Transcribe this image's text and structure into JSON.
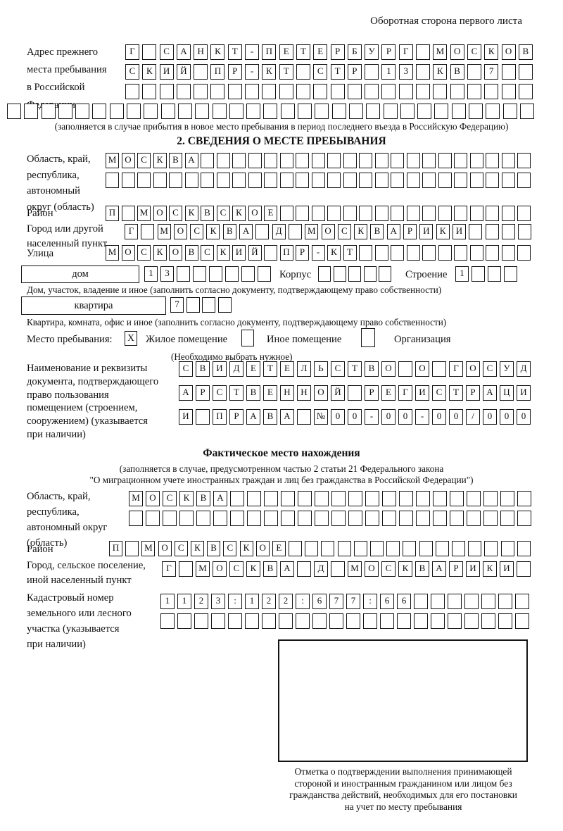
{
  "header_note": "Оборотная сторона первого листа",
  "section1": {
    "label_lines": [
      "Адрес прежнего",
      "места пребывания",
      "в Российской",
      "Федерации"
    ],
    "rows": [
      {
        "len": 24,
        "text": "Г САНКТ-ПЕТЕРБУРГ МОСКОВ"
      },
      {
        "len": 24,
        "text": "СКИЙ ПР-КТ СТР 13 КВ 7"
      },
      {
        "len": 24,
        "text": ""
      },
      {
        "len": 31,
        "text": ""
      }
    ],
    "caption": "(заполняется в случае прибытия в новое место пребывания в период последнего въезда в Российскую Федерацию)"
  },
  "section2": {
    "title": "2. СВЕДЕНИЯ О МЕСТЕ ПРЕБЫВАНИЯ",
    "region": {
      "label_lines": [
        "Область, край,",
        "республика,",
        "автономный",
        "округ (область)"
      ],
      "row1": {
        "len": 27,
        "text": "МОСКВА"
      },
      "row2": {
        "len": 27,
        "text": ""
      }
    },
    "district": {
      "label": "Район",
      "row": {
        "len": 27,
        "text": "П МОСКВСКОЕ"
      }
    },
    "city": {
      "label_lines": [
        "Город или другой",
        "населенный пункт"
      ],
      "row": {
        "len": 25,
        "text": "Г МОСКВА Д МОСКВАРИКИ"
      }
    },
    "street": {
      "label": "Улица",
      "row": {
        "len": 27,
        "text": "МОСКОВСКИЙ ПР-КТ"
      }
    },
    "house": {
      "box_label": "дом",
      "cells1": {
        "len": 8,
        "text": "13"
      },
      "korpus_label": "Корпус",
      "cells2": {
        "len": 5,
        "text": ""
      },
      "stroenie_label": "Строение",
      "cells3": {
        "len": 4,
        "text": "1"
      },
      "caption": "Дом, участок, владение и иное (заполнить согласно документу, подтверждающему право собственности)"
    },
    "apartment": {
      "box_label": "квартира",
      "cells": {
        "len": 4,
        "text": "7"
      },
      "caption": "Квартира, комната, офис и иное (заполнить согласно документу, подтверждающему право собственности)"
    },
    "stay_type": {
      "label": "Место пребывания:",
      "options": [
        {
          "label": "Жилое помещение",
          "mark": "X"
        },
        {
          "label": "Иное помещение",
          "mark": ""
        },
        {
          "label": "Организация",
          "mark": ""
        }
      ],
      "note": "(Необходимо выбрать нужное)"
    },
    "doc": {
      "label_lines": [
        "Наименование и реквизиты",
        "документа, подтверждающего",
        "право пользования",
        "помещением (строением,",
        "сооружением) (указывается",
        "при наличии)"
      ],
      "rows": [
        {
          "len": 21,
          "text": "СВИДЕТЕЛЬСТВО О ГОСУД"
        },
        {
          "len": 21,
          "text": "АРСТВЕННОЙ РЕГИСТРАЦИ"
        },
        {
          "len": 21,
          "text": "И ПРАВА №00-00-00/000"
        }
      ]
    }
  },
  "fact": {
    "title": "Фактическое место нахождения",
    "note1": "(заполняется в случае, предусмотренном частью 2 статьи 21 Федерального закона",
    "note2": "\"О миграционном учете иностранных граждан и лиц без гражданства в Российской Федерации\")",
    "region": {
      "label_lines": [
        "Область, край,",
        "республика,",
        "автономный округ",
        "(область)"
      ],
      "row1": {
        "len": 24,
        "text": "МОСКВА"
      },
      "row2": {
        "len": 24,
        "text": ""
      }
    },
    "district": {
      "label": "Район",
      "row": {
        "len": 26,
        "text": "П МОСКВСКОЕ"
      }
    },
    "city": {
      "label_lines": [
        "Город, сельское поселение,",
        "иной населенный пункт"
      ],
      "row": {
        "len": 22,
        "text": "Г МОСКВА Д МОСКВАРИКИ"
      }
    },
    "cadastral": {
      "label_lines": [
        "Кадастровый номер",
        "земельного или лесного",
        "участка (указывается",
        "при наличии)"
      ],
      "row1": {
        "len": 22,
        "text": "1123:122:677:66"
      },
      "row2": {
        "len": 22,
        "text": ""
      }
    },
    "stamp_caption_lines": [
      "Отметка о подтверждении выполнения принимающей",
      "стороной и иностранным гражданином или лицом без",
      "гражданства действий, необходимых для его постановки",
      "на учет по месту пребывания"
    ]
  }
}
